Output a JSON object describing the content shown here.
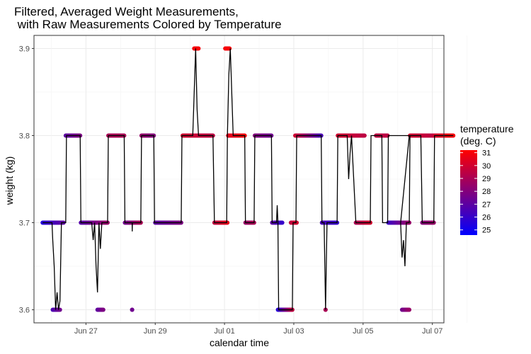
{
  "chart_data": {
    "type": "scatter",
    "title_line1": "Filtered, Averaged Weight Measurements,",
    "title_line2": " with Raw Measurements Colored by Temperature",
    "xlabel": "calendar time",
    "ylabel": "weight (kg)",
    "x_ticks": [
      "Jun 27",
      "Jun 29",
      "Jul 01",
      "Jul 03",
      "Jul 05",
      "Jul 07"
    ],
    "x_range_days": [
      "Jun 25 12:00",
      "Jul 07 08:00"
    ],
    "y_ticks": [
      "3.6",
      "3.7",
      "3.8",
      "3.9"
    ],
    "ylim": [
      3.585,
      3.915
    ],
    "grid": true,
    "legend": {
      "title_line1": "temperature",
      "title_line2": "(deg. C)",
      "placement": "right",
      "labels": [
        "31",
        "30",
        "29",
        "28",
        "27",
        "26",
        "25"
      ],
      "range": [
        24.6,
        31.2
      ],
      "color_low": "#0000ff",
      "color_high": "#ff0000"
    },
    "raw_segments": [
      {
        "x_start": "Jun 25 18:00",
        "x_end": "Jun 26 08:30",
        "y": 3.7,
        "t_start": 25.5,
        "t_end": 27.0
      },
      {
        "x_start": "Jun 26 01:00",
        "x_end": "Jun 26 06:00",
        "y": 3.6,
        "t_start": 26.5,
        "t_end": 27.5
      },
      {
        "x_start": "Jun 26 10:00",
        "x_end": "Jun 26 20:00",
        "y": 3.8,
        "t_start": 27.0,
        "t_end": 27.8
      },
      {
        "x_start": "Jun 26 20:30",
        "x_end": "Jun 27 15:00",
        "y": 3.7,
        "t_start": 26.8,
        "t_end": 28.5
      },
      {
        "x_start": "Jun 27 08:00",
        "x_end": "Jun 27 12:00",
        "y": 3.6,
        "t_start": 27.0,
        "t_end": 27.8
      },
      {
        "x_start": "Jun 27 15:30",
        "x_end": "Jun 28 02:30",
        "y": 3.8,
        "t_start": 29.0,
        "t_end": 29.0
      },
      {
        "x_start": "Jun 28 03:00",
        "x_end": "Jun 28 14:00",
        "y": 3.7,
        "t_start": 27.5,
        "t_end": 29.0
      },
      {
        "x_start": "Jun 28 08:00",
        "x_end": "Jun 28 08:00",
        "y": 3.6,
        "t_start": 27.5,
        "t_end": 27.5
      },
      {
        "x_start": "Jun 28 14:30",
        "x_end": "Jun 28 23:00",
        "y": 3.8,
        "t_start": 28.5,
        "t_end": 28.0
      },
      {
        "x_start": "Jun 29 00:00",
        "x_end": "Jun 29 18:00",
        "y": 3.7,
        "t_start": 27.0,
        "t_end": 27.8
      },
      {
        "x_start": "Jun 29 19:00",
        "x_end": "Jun 30 16:00",
        "y": 3.8,
        "t_start": 30.0,
        "t_end": 29.5
      },
      {
        "x_start": "Jun 30 03:00",
        "x_end": "Jun 30 06:00",
        "y": 3.9,
        "t_start": 31.0,
        "t_end": 31.0
      },
      {
        "x_start": "Jun 30 17:00",
        "x_end": "Jul 01 02:00",
        "y": 3.7,
        "t_start": 29.5,
        "t_end": 30.5
      },
      {
        "x_start": "Jul 01 02:30",
        "x_end": "Jul 01 08:00",
        "y": 3.8,
        "t_start": 30.5,
        "t_end": 30.5
      },
      {
        "x_start": "Jul 01 08:00",
        "x_end": "Jul 01 14:00",
        "y": 3.8,
        "t_start": 30.5,
        "t_end": 31.0
      },
      {
        "x_start": "Jul 01 00:30",
        "x_end": "Jul 01 03:30",
        "y": 3.9,
        "t_start": 31.0,
        "t_end": 31.0
      },
      {
        "x_start": "Jul 01 14:30",
        "x_end": "Jul 01 20:30",
        "y": 3.7,
        "t_start": 28.5,
        "t_end": 29.0
      },
      {
        "x_start": "Jul 01 21:00",
        "x_end": "Jul 02 08:30",
        "y": 3.8,
        "t_start": 28.0,
        "t_end": 27.5
      },
      {
        "x_start": "Jul 02 09:00",
        "x_end": "Jul 02 16:00",
        "y": 3.7,
        "t_start": 27.0,
        "t_end": 26.0
      },
      {
        "x_start": "Jul 02 13:00",
        "x_end": "Jul 02 23:00",
        "y": 3.6,
        "t_start": 25.5,
        "t_end": 29.5
      },
      {
        "x_start": "Jul 02 22:00",
        "x_end": "Jul 03 02:00",
        "y": 3.7,
        "t_start": 29.5,
        "t_end": 30.0
      },
      {
        "x_start": "Jul 03 01:00",
        "x_end": "Jul 03 19:00",
        "y": 3.8,
        "t_start": 30.0,
        "t_end": 26.5
      },
      {
        "x_start": "Jul 03 19:30",
        "x_end": "Jul 04 06:00",
        "y": 3.7,
        "t_start": 26.5,
        "t_end": 26.0
      },
      {
        "x_start": "Jul 03 22:00",
        "x_end": "Jul 03 22:00",
        "y": 3.6,
        "t_start": 29.0,
        "t_end": 29.0
      },
      {
        "x_start": "Jul 04 06:30",
        "x_end": "Jul 05 01:00",
        "y": 3.8,
        "t_start": 30.0,
        "t_end": 29.5
      },
      {
        "x_start": "Jul 04 19:00",
        "x_end": "Jul 05 05:00",
        "y": 3.7,
        "t_start": 29.0,
        "t_end": 30.0
      },
      {
        "x_start": "Jul 05 09:00",
        "x_end": "Jul 05 17:00",
        "y": 3.8,
        "t_start": 29.5,
        "t_end": 29.5
      },
      {
        "x_start": "Jul 05 17:30",
        "x_end": "Jul 06 08:00",
        "y": 3.7,
        "t_start": 26.0,
        "t_end": 28.5
      },
      {
        "x_start": "Jul 06 03:00",
        "x_end": "Jul 06 08:00",
        "y": 3.6,
        "t_start": 27.5,
        "t_end": 28.5
      },
      {
        "x_start": "Jul 06 08:30",
        "x_end": "Jul 07 01:00",
        "y": 3.8,
        "t_start": 30.0,
        "t_end": 29.5
      },
      {
        "x_start": "Jul 06 17:00",
        "x_end": "Jul 07 01:00",
        "y": 3.7,
        "t_start": 28.0,
        "t_end": 28.5
      },
      {
        "x_start": "Jul 07 01:30",
        "x_end": "Jul 07 14:30",
        "y": 3.8,
        "t_start": 30.0,
        "t_end": 31.0
      }
    ],
    "filtered_line": [
      [
        "Jun 25 18:00",
        3.7
      ],
      [
        "Jun 26 00:30",
        3.7
      ],
      [
        "Jun 26 01:00",
        3.68
      ],
      [
        "Jun 26 02:00",
        3.65
      ],
      [
        "Jun 26 03:00",
        3.6
      ],
      [
        "Jun 26 04:00",
        3.62
      ],
      [
        "Jun 26 05:00",
        3.6
      ],
      [
        "Jun 26 06:00",
        3.61
      ],
      [
        "Jun 26 07:00",
        3.7
      ],
      [
        "Jun 26 10:00",
        3.7
      ],
      [
        "Jun 26 10:30",
        3.8
      ],
      [
        "Jun 26 20:00",
        3.8
      ],
      [
        "Jun 26 20:30",
        3.7
      ],
      [
        "Jun 27 04:00",
        3.7
      ],
      [
        "Jun 27 05:00",
        3.68
      ],
      [
        "Jun 27 06:00",
        3.7
      ],
      [
        "Jun 27 07:00",
        3.65
      ],
      [
        "Jun 27 08:00",
        3.62
      ],
      [
        "Jun 27 09:00",
        3.7
      ],
      [
        "Jun 27 10:00",
        3.67
      ],
      [
        "Jun 27 11:00",
        3.7
      ],
      [
        "Jun 27 15:00",
        3.7
      ],
      [
        "Jun 27 15:30",
        3.8
      ],
      [
        "Jun 28 02:30",
        3.8
      ],
      [
        "Jun 28 03:00",
        3.7
      ],
      [
        "Jun 28 08:00",
        3.7
      ],
      [
        "Jun 28 08:05",
        3.69
      ],
      [
        "Jun 28 08:10",
        3.7
      ],
      [
        "Jun 28 14:00",
        3.7
      ],
      [
        "Jun 28 14:30",
        3.8
      ],
      [
        "Jun 28 23:00",
        3.8
      ],
      [
        "Jun 28 23:30",
        3.7
      ],
      [
        "Jun 29 18:00",
        3.7
      ],
      [
        "Jun 29 18:30",
        3.8
      ],
      [
        "Jun 30 02:00",
        3.8
      ],
      [
        "Jun 30 03:00",
        3.85
      ],
      [
        "Jun 30 04:00",
        3.9
      ],
      [
        "Jun 30 05:00",
        3.83
      ],
      [
        "Jun 30 06:00",
        3.8
      ],
      [
        "Jun 30 16:00",
        3.8
      ],
      [
        "Jun 30 17:00",
        3.7
      ],
      [
        "Jul 01 01:30",
        3.7
      ],
      [
        "Jul 01 02:00",
        3.8
      ],
      [
        "Jul 01 03:00",
        3.87
      ],
      [
        "Jul 01 04:00",
        3.9
      ],
      [
        "Jul 01 05:00",
        3.85
      ],
      [
        "Jul 01 06:00",
        3.8
      ],
      [
        "Jul 01 14:00",
        3.8
      ],
      [
        "Jul 01 14:30",
        3.7
      ],
      [
        "Jul 01 20:30",
        3.7
      ],
      [
        "Jul 01 21:00",
        3.8
      ],
      [
        "Jul 02 08:30",
        3.8
      ],
      [
        "Jul 02 09:00",
        3.7
      ],
      [
        "Jul 02 12:00",
        3.7
      ],
      [
        "Jul 02 12:30",
        3.72
      ],
      [
        "Jul 02 13:00",
        3.7
      ],
      [
        "Jul 02 13:30",
        3.6
      ],
      [
        "Jul 02 23:00",
        3.6
      ],
      [
        "Jul 02 23:30",
        3.7
      ],
      [
        "Jul 03 01:30",
        3.7
      ],
      [
        "Jul 03 02:00",
        3.8
      ],
      [
        "Jul 03 19:00",
        3.8
      ],
      [
        "Jul 03 19:30",
        3.7
      ],
      [
        "Jul 03 21:00",
        3.7
      ],
      [
        "Jul 03 22:00",
        3.6
      ],
      [
        "Jul 03 23:00",
        3.7
      ],
      [
        "Jul 04 06:00",
        3.7
      ],
      [
        "Jul 04 06:30",
        3.8
      ],
      [
        "Jul 04 13:00",
        3.8
      ],
      [
        "Jul 04 14:00",
        3.75
      ],
      [
        "Jul 04 15:00",
        3.78
      ],
      [
        "Jul 04 16:00",
        3.8
      ],
      [
        "Jul 04 19:00",
        3.7
      ],
      [
        "Jul 05 05:00",
        3.7
      ],
      [
        "Jul 05 05:30",
        3.8
      ],
      [
        "Jul 05 13:00",
        3.8
      ],
      [
        "Jul 05 13:30",
        3.7
      ],
      [
        "Jul 05 17:00",
        3.7
      ],
      [
        "Jul 05 17:30",
        3.8
      ],
      [
        "Jul 06 08:00",
        3.8
      ],
      [
        "Jul 06 02:00",
        3.7
      ],
      [
        "Jul 06 03:00",
        3.66
      ],
      [
        "Jul 06 04:00",
        3.68
      ],
      [
        "Jul 06 05:00",
        3.65
      ],
      [
        "Jul 06 06:00",
        3.7
      ],
      [
        "Jul 06 08:00",
        3.7
      ],
      [
        "Jul 06 08:30",
        3.8
      ],
      [
        "Jul 06 16:00",
        3.8
      ],
      [
        "Jul 06 17:00",
        3.7
      ],
      [
        "Jul 07 01:00",
        3.7
      ],
      [
        "Jul 07 01:30",
        3.8
      ],
      [
        "Jul 07 14:30",
        3.8
      ]
    ]
  }
}
